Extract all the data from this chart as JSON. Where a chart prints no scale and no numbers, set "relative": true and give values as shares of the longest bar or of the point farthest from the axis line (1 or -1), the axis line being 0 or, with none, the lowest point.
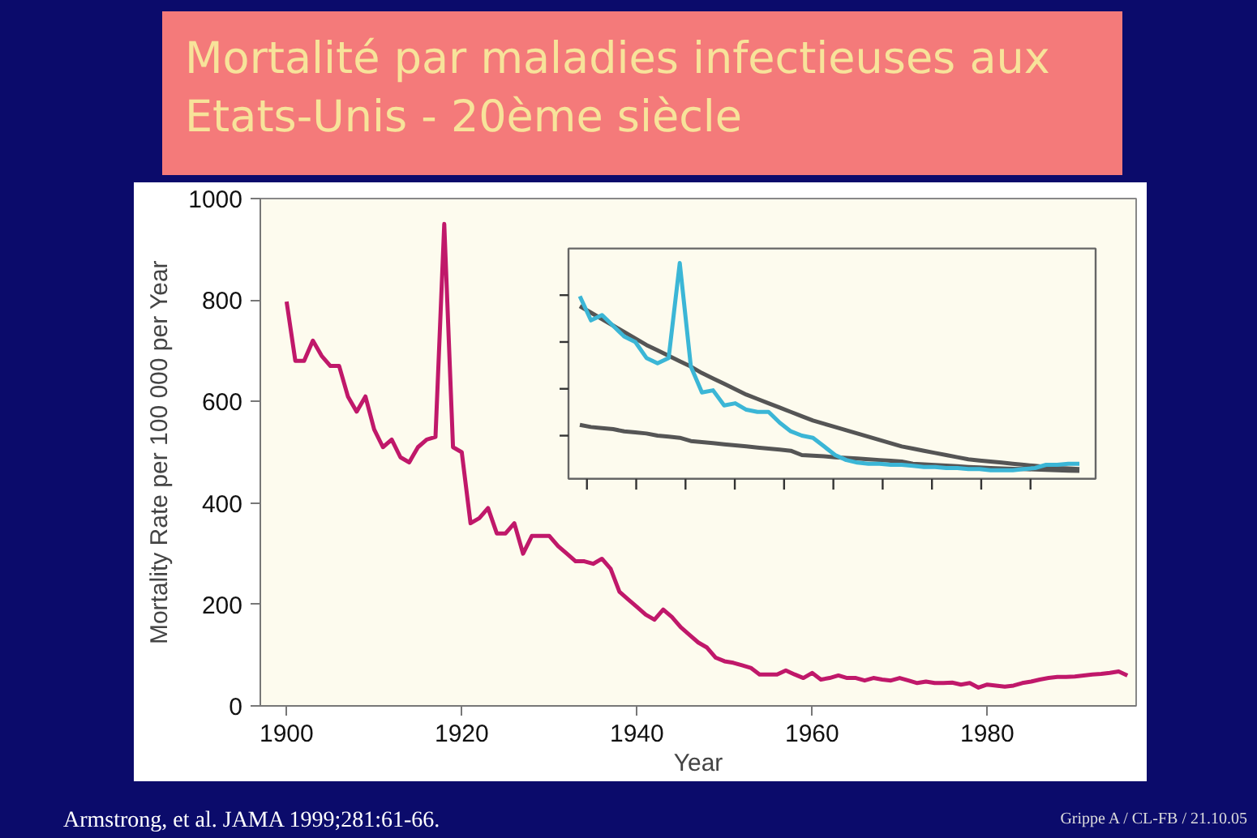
{
  "chart_data": [
    {
      "type": "line",
      "title": "Mortalité par maladies infectieuses aux Etats-Unis - 20ème siècle",
      "xlabel": "Year",
      "ylabel": "Mortality Rate per 100 000 per Year",
      "x": [
        1900,
        1901,
        1902,
        1903,
        1904,
        1905,
        1906,
        1907,
        1908,
        1909,
        1910,
        1911,
        1912,
        1913,
        1914,
        1915,
        1916,
        1917,
        1918,
        1919,
        1920,
        1921,
        1922,
        1923,
        1924,
        1925,
        1926,
        1927,
        1928,
        1929,
        1930,
        1931,
        1932,
        1933,
        1934,
        1935,
        1936,
        1937,
        1938,
        1939,
        1940,
        1941,
        1942,
        1943,
        1944,
        1945,
        1946,
        1947,
        1948,
        1949,
        1950,
        1951,
        1952,
        1953,
        1954,
        1955,
        1956,
        1957,
        1958,
        1959,
        1960,
        1961,
        1962,
        1963,
        1964,
        1965,
        1966,
        1967,
        1968,
        1969,
        1970,
        1971,
        1972,
        1973,
        1974,
        1975,
        1976,
        1977,
        1978,
        1979,
        1980,
        1981,
        1982,
        1983,
        1984,
        1985,
        1986,
        1987,
        1988,
        1989,
        1990,
        1991,
        1992,
        1993,
        1994,
        1995,
        1996
      ],
      "series": [
        {
          "color": "#c0186a",
          "values": [
            797,
            680,
            680,
            720,
            690,
            670,
            670,
            610,
            580,
            610,
            545,
            510,
            525,
            490,
            480,
            510,
            525,
            530,
            950,
            510,
            500,
            360,
            370,
            390,
            340,
            340,
            360,
            300,
            335,
            335,
            335,
            315,
            300,
            285,
            285,
            280,
            290,
            270,
            225,
            210,
            195,
            180,
            170,
            190,
            175,
            155,
            140,
            125,
            115,
            95,
            88,
            85,
            80,
            75,
            62,
            62,
            62,
            70,
            62,
            55,
            65,
            52,
            55,
            60,
            55,
            55,
            50,
            55,
            52,
            50,
            55,
            50,
            45,
            48,
            45,
            45,
            46,
            42,
            45,
            36,
            42,
            40,
            38,
            40,
            45,
            48,
            52,
            55,
            57,
            57,
            58,
            60,
            62,
            63,
            65,
            68,
            60
          ]
        }
      ],
      "xlim": [
        1897,
        1997
      ],
      "ylim": [
        0,
        1000
      ],
      "xticks": [
        1900,
        1920,
        1940,
        1960,
        1980
      ],
      "yticks": [
        0,
        200,
        400,
        600,
        800,
        1000
      ],
      "annotations": [
        "Armstrong, et al. JAMA 1999;281:61-66.",
        "Grippe A / CL-FB / 21.10.05"
      ]
    },
    {
      "type": "line",
      "relative": true,
      "categories": [
        null,
        null,
        null,
        null,
        null,
        null,
        null,
        null,
        null,
        null,
        null,
        null,
        null,
        null,
        null,
        null,
        null,
        null,
        null,
        null,
        null,
        null,
        null,
        null,
        null,
        null,
        null,
        null,
        null,
        null,
        null,
        null,
        null,
        null,
        null,
        null,
        null,
        null,
        null,
        null,
        null,
        null,
        null,
        null,
        null,
        null
      ],
      "series": [
        {
          "color": "#555555",
          "values": [
            0.8,
            0.77,
            0.74,
            0.71,
            0.68,
            0.65,
            0.62,
            0.595,
            0.57,
            0.545,
            0.52,
            0.49,
            0.465,
            0.44,
            0.415,
            0.39,
            0.37,
            0.35,
            0.33,
            0.31,
            0.29,
            0.27,
            0.255,
            0.24,
            0.225,
            0.21,
            0.195,
            0.18,
            0.165,
            0.15,
            0.14,
            0.13,
            0.12,
            0.11,
            0.1,
            0.09,
            0.085,
            0.08,
            0.075,
            0.07,
            0.065,
            0.06,
            0.055,
            0.05,
            0.048,
            0.045
          ]
        },
        {
          "color": "#555555",
          "values": [
            0.25,
            0.24,
            0.235,
            0.23,
            0.22,
            0.215,
            0.21,
            0.2,
            0.195,
            0.19,
            0.175,
            0.17,
            0.165,
            0.16,
            0.155,
            0.15,
            0.145,
            0.14,
            0.135,
            0.13,
            0.11,
            0.107,
            0.104,
            0.1,
            0.097,
            0.094,
            0.09,
            0.087,
            0.084,
            0.08,
            0.07,
            0.067,
            0.064,
            0.061,
            0.058,
            0.055,
            0.053,
            0.05,
            0.048,
            0.046,
            0.045,
            0.043,
            0.041,
            0.04,
            0.038,
            0.037
          ]
        },
        {
          "color": "#3bb6d6",
          "values": [
            0.846,
            0.734,
            0.759,
            0.709,
            0.659,
            0.634,
            0.56,
            0.535,
            0.56,
            1.0,
            0.52,
            0.4,
            0.41,
            0.34,
            0.35,
            0.32,
            0.31,
            0.31,
            0.26,
            0.22,
            0.2,
            0.19,
            0.15,
            0.11,
            0.087,
            0.075,
            0.07,
            0.07,
            0.065,
            0.065,
            0.06,
            0.055,
            0.055,
            0.05,
            0.05,
            0.045,
            0.045,
            0.04,
            0.04,
            0.04,
            0.045,
            0.05,
            0.065,
            0.065,
            0.07,
            0.07
          ]
        }
      ]
    }
  ]
}
